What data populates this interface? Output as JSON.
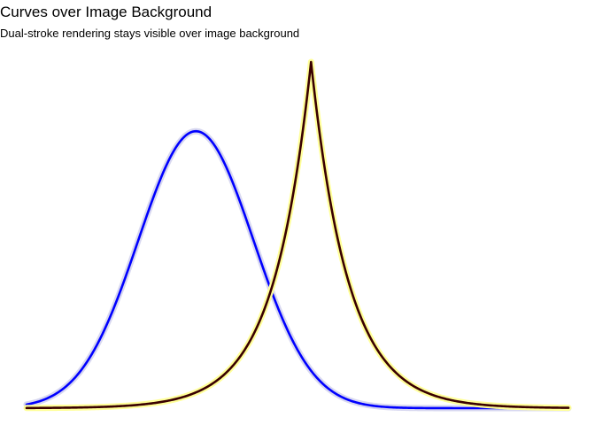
{
  "chart_data": {
    "type": "line",
    "title": "Curves over Image Background",
    "subtitle": "Dual-stroke rendering stays visible over image background",
    "xlabel": "",
    "ylabel": "",
    "grid": false,
    "axes_visible": false,
    "xlim": [
      -4,
      4
    ],
    "ylim": [
      0,
      1
    ],
    "series": [
      {
        "curve": "gaussian",
        "center": -1.5,
        "width": 0.85,
        "peak": 0.8,
        "color": "#0000ff",
        "halo_color": "#d8d8f0"
      },
      {
        "curve": "laplace",
        "center": 0.2,
        "width": 0.55,
        "peak": 1.0,
        "color": "#3a0000",
        "halo_color": "#ffff99"
      }
    ]
  }
}
